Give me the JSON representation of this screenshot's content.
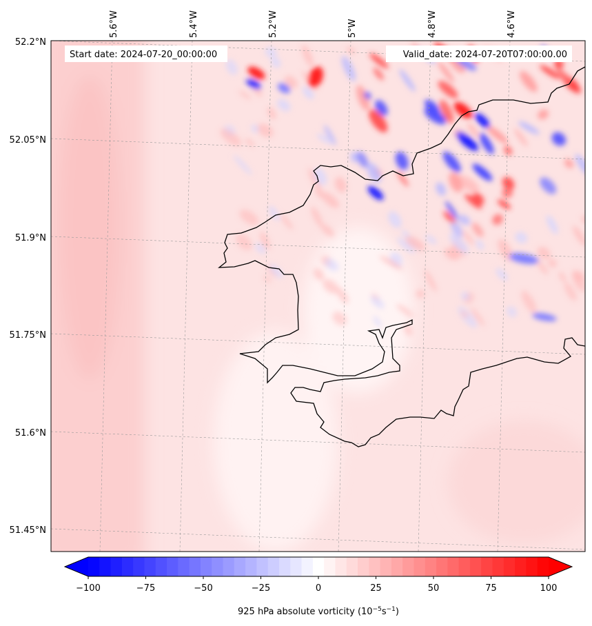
{
  "map": {
    "start_date": "Start date: 2024-07-20_00:00:00",
    "valid_date": "Valid_date: 2024-07-20T07:00:00.00",
    "lon_labels": [
      "5.6°W",
      "5.4°W",
      "5.2°W",
      "5°W",
      "4.8°W",
      "4.6°W"
    ],
    "lat_labels": [
      "52.2°N",
      "52.05°N",
      "51.9°N",
      "51.75°N",
      "51.6°N",
      "51.45°N"
    ],
    "field_colors": {
      "base": "#fde3e3",
      "west_band": "#fccfcf",
      "positive": "#ff2020",
      "negative": "#1a1aff"
    }
  },
  "colorbar": {
    "label_main": "925 hPa absolute vorticity (10",
    "label_exp1": "−5",
    "label_mid": "s",
    "label_exp2": "−1",
    "label_end": ")",
    "min": -100,
    "max": 100,
    "levels": 41,
    "ticks": [
      "−100",
      "−75",
      "−50",
      "−25",
      "0",
      "25",
      "50",
      "75",
      "100"
    ],
    "low_color": "#0000ff",
    "high_color": "#ff0000"
  }
}
